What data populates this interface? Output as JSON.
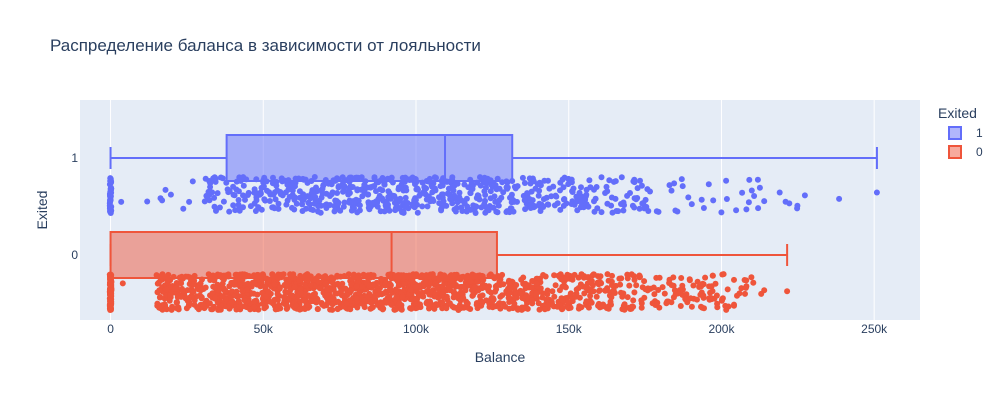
{
  "chart_data": {
    "type": "box",
    "title": "Распределение баланса в зависимости от лояльности",
    "xlabel": "Balance",
    "ylabel": "Exited",
    "xlim": [
      -10000,
      265000
    ],
    "x_ticks": [
      0,
      50000,
      100000,
      150000,
      200000,
      250000
    ],
    "x_tick_labels": [
      "0",
      "50k",
      "100k",
      "150k",
      "200k",
      "250k"
    ],
    "categories": [
      "1",
      "0"
    ],
    "grid": true,
    "legend": {
      "title": "Exited",
      "placement": "top-right"
    },
    "series": [
      {
        "name": "1",
        "category": "1",
        "color": "#636efa",
        "min": 0,
        "q1": 38000,
        "median": 109500,
        "q3": 131500,
        "max": 250900,
        "points_shown": "all"
      },
      {
        "name": "0",
        "category": "0",
        "color": "#ef553b",
        "min": 0,
        "q1": 0,
        "median": 92000,
        "q3": 126500,
        "max": 221500,
        "points_shown": "all"
      }
    ]
  }
}
